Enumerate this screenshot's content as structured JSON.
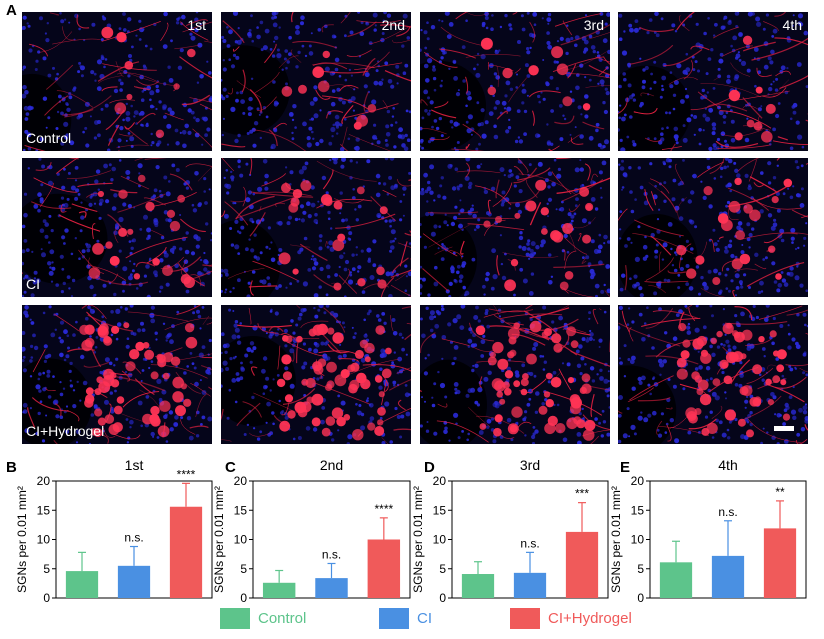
{
  "figure": {
    "panel_a_letter": "A",
    "columns": [
      "1st",
      "2nd",
      "3rd",
      "4th"
    ],
    "rows": [
      "Control",
      "CI",
      "CI+Hydrogel"
    ],
    "colors": {
      "background_tissue": "#05051a",
      "nuclei": "#2a2ad8",
      "fibers": "#e02040",
      "neurons": "#ff3355"
    }
  },
  "legend": [
    {
      "label": "Control",
      "color": "#5dc48b"
    },
    {
      "label": "CI",
      "color": "#4a90e2"
    },
    {
      "label": "CI+Hydrogel",
      "color": "#f05a5a"
    }
  ],
  "chart_data": [
    {
      "panel": "B",
      "type": "bar",
      "title": "1st",
      "categories": [
        "Control",
        "CI",
        "CI+Hydrogel"
      ],
      "values": [
        4.6,
        5.5,
        15.6
      ],
      "errors": [
        3.2,
        3.3,
        4.0
      ],
      "annotations": [
        "",
        "n.s.",
        "****"
      ],
      "ylabel": "SGNs per 0.01 mm²",
      "ylim": [
        0,
        20
      ],
      "yticks": [
        "0",
        "5",
        "10",
        "15",
        "20"
      ]
    },
    {
      "panel": "C",
      "type": "bar",
      "title": "2nd",
      "categories": [
        "Control",
        "CI",
        "CI+Hydrogel"
      ],
      "values": [
        2.6,
        3.4,
        10.0
      ],
      "errors": [
        2.1,
        2.5,
        3.7
      ],
      "annotations": [
        "",
        "n.s.",
        "****"
      ],
      "ylabel": "SGNs per 0.01 mm²",
      "ylim": [
        0,
        20
      ],
      "yticks": [
        "0",
        "5",
        "10",
        "15",
        "20"
      ]
    },
    {
      "panel": "D",
      "type": "bar",
      "title": "3rd",
      "categories": [
        "Control",
        "CI",
        "CI+Hydrogel"
      ],
      "values": [
        4.1,
        4.3,
        11.3
      ],
      "errors": [
        2.1,
        3.5,
        5.0
      ],
      "annotations": [
        "",
        "n.s.",
        "***"
      ],
      "ylabel": "SGNs per 0.01 mm²",
      "ylim": [
        0,
        20
      ],
      "yticks": [
        "0",
        "5",
        "10",
        "15",
        "20"
      ]
    },
    {
      "panel": "E",
      "type": "bar",
      "title": "4th",
      "categories": [
        "Control",
        "CI",
        "CI+Hydrogel"
      ],
      "values": [
        6.1,
        7.2,
        11.9
      ],
      "errors": [
        3.6,
        6.0,
        4.7
      ],
      "annotations": [
        "",
        "n.s.",
        "**"
      ],
      "ylabel": "SGNs per 0.01 mm²",
      "ylim": [
        0,
        20
      ],
      "yticks": [
        "0",
        "5",
        "10",
        "15",
        "20"
      ]
    }
  ]
}
